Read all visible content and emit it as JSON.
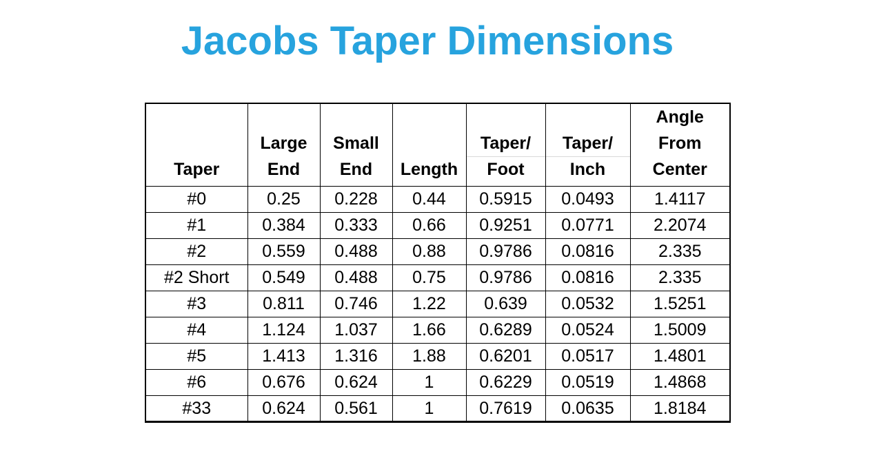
{
  "title_color": "#27a3de",
  "chart_data": {
    "type": "table",
    "title": "Jacobs Taper Dimensions",
    "grid": true,
    "columns": [
      "Taper",
      "Large\nEnd",
      "Small\nEnd",
      "Length",
      "Taper/\nFoot",
      "Taper/\nInch",
      "Angle\nFrom\nCenter"
    ],
    "rows": [
      [
        "#0",
        "0.25",
        "0.228",
        "0.44",
        "0.5915",
        "0.0493",
        "1.4117"
      ],
      [
        "#1",
        "0.384",
        "0.333",
        "0.66",
        "0.9251",
        "0.0771",
        "2.2074"
      ],
      [
        "#2",
        "0.559",
        "0.488",
        "0.88",
        "0.9786",
        "0.0816",
        "2.335"
      ],
      [
        "#2 Short",
        "0.549",
        "0.488",
        "0.75",
        "0.9786",
        "0.0816",
        "2.335"
      ],
      [
        "#3",
        "0.811",
        "0.746",
        "1.22",
        "0.639",
        "0.0532",
        "1.5251"
      ],
      [
        "#4",
        "1.124",
        "1.037",
        "1.66",
        "0.6289",
        "0.0524",
        "1.5009"
      ],
      [
        "#5",
        "1.413",
        "1.316",
        "1.88",
        "0.6201",
        "0.0517",
        "1.4801"
      ],
      [
        "#6",
        "0.676",
        "0.624",
        "1",
        "0.6229",
        "0.0519",
        "1.4868"
      ],
      [
        "#33",
        "0.624",
        "0.561",
        "1",
        "0.7619",
        "0.0635",
        "1.8184"
      ]
    ]
  }
}
